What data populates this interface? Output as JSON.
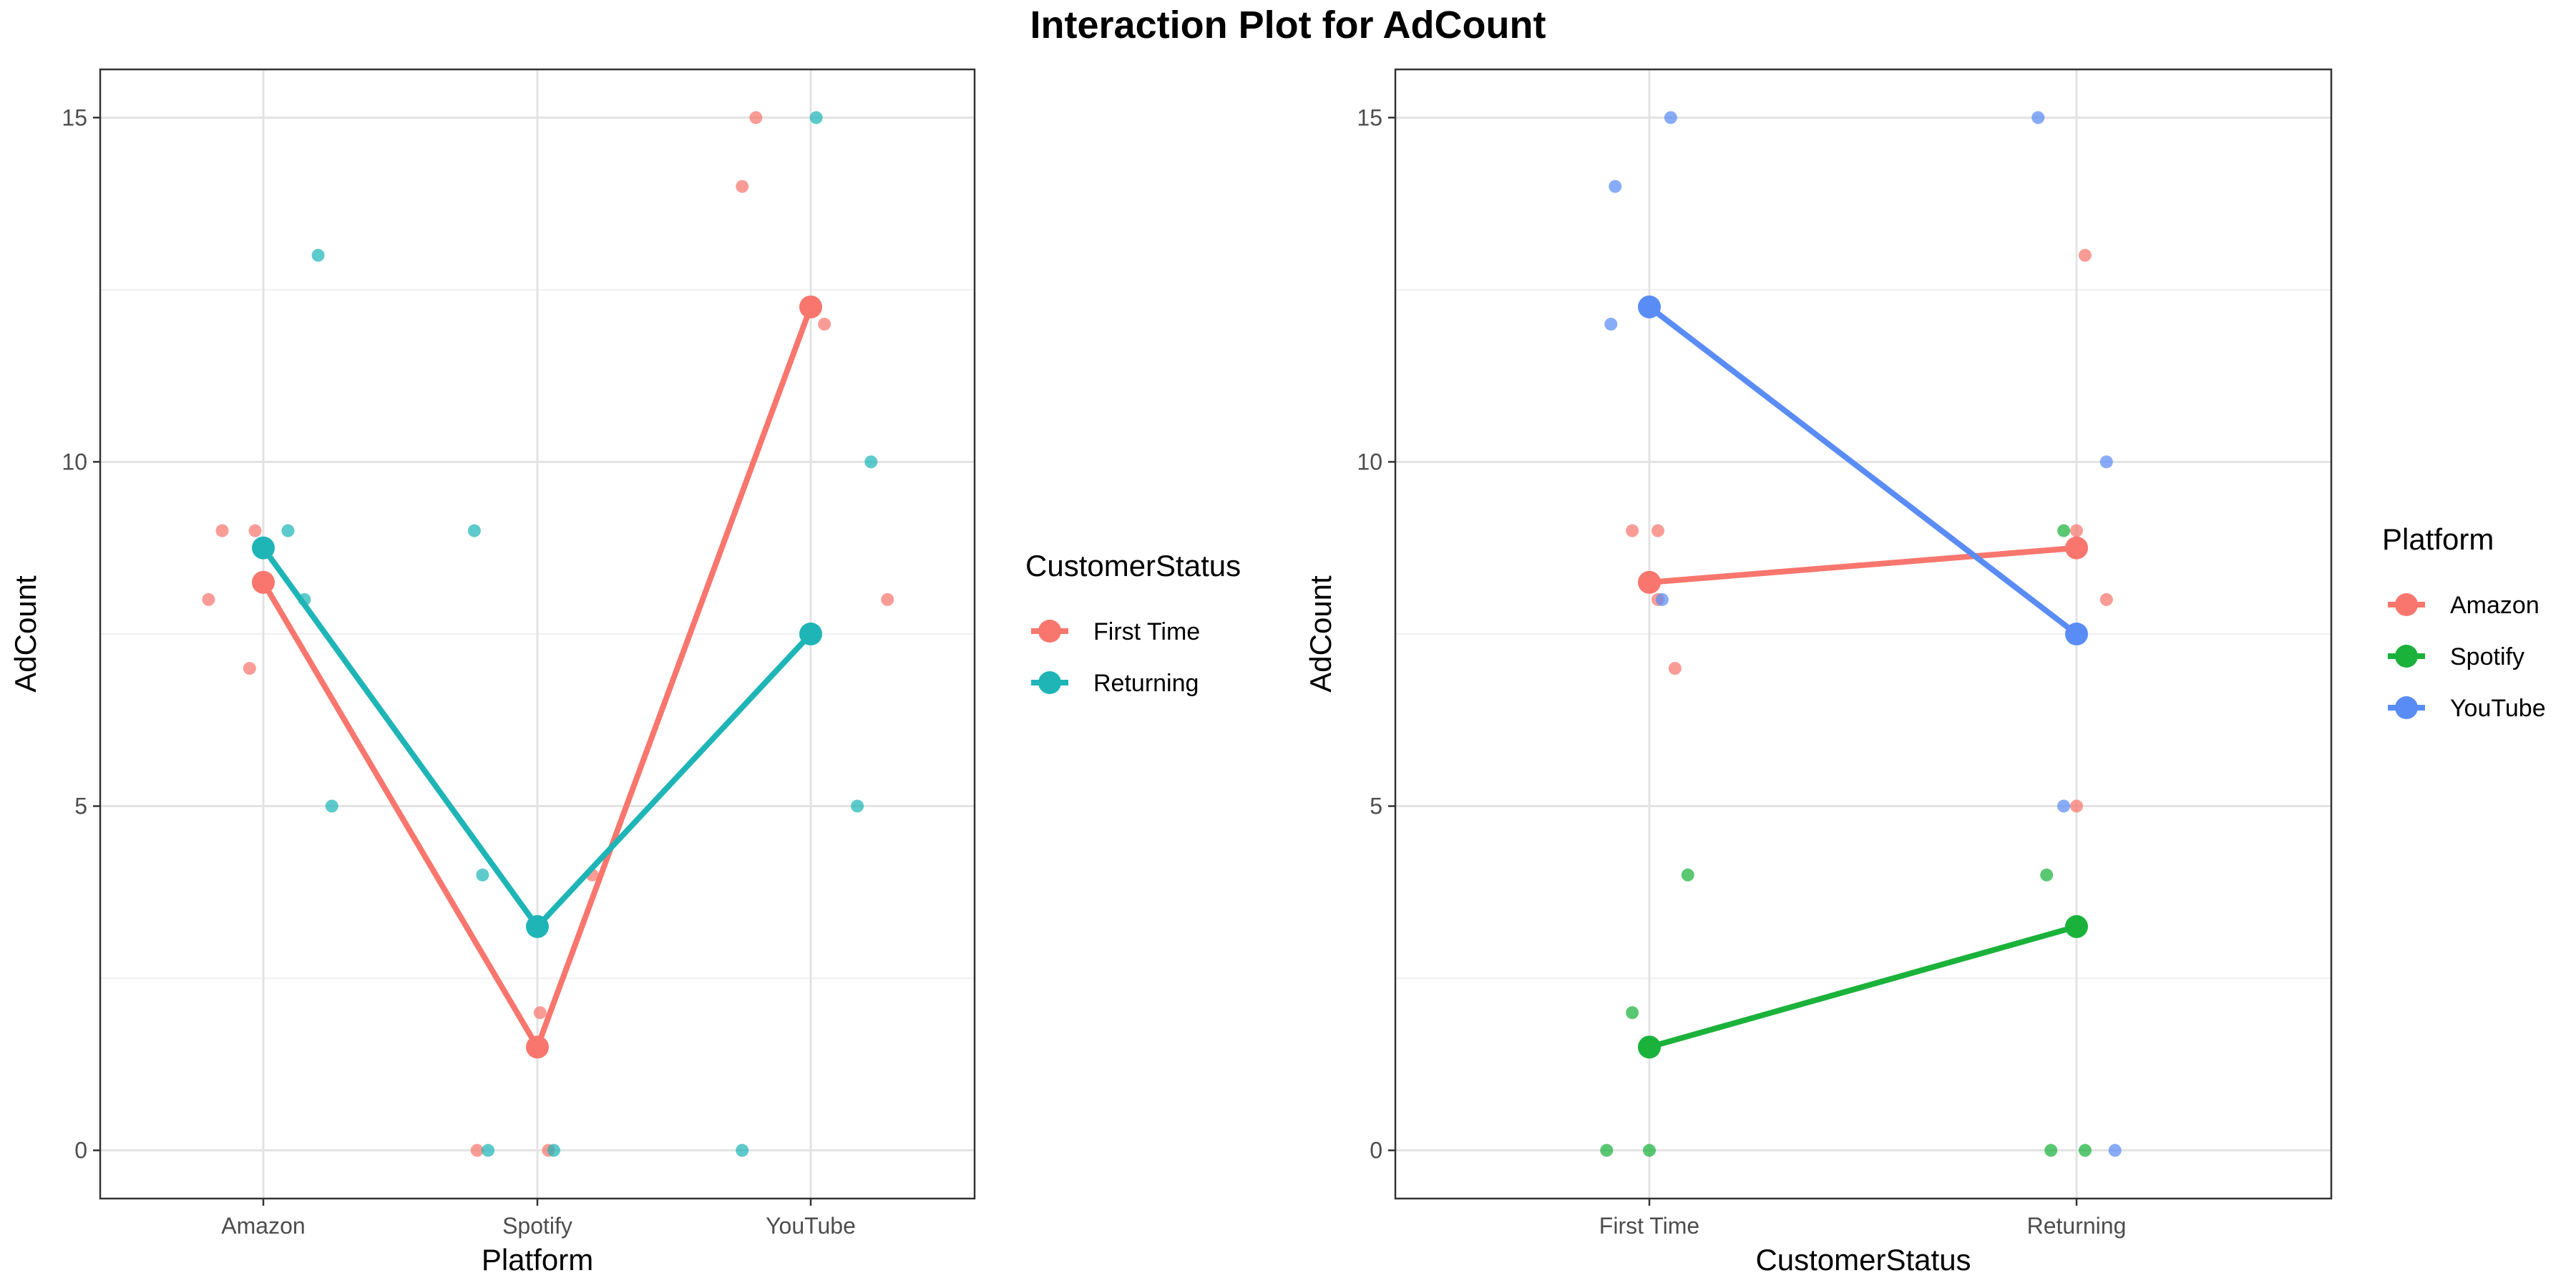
{
  "title": "Interaction Plot for AdCount",
  "colors": {
    "Amazon": "#F8766D",
    "Spotify": "#1AB23B",
    "YouTube": "#5A8CF5",
    "First Time": "#F8766D",
    "Returning": "#1FB5B7"
  },
  "chart_data": [
    {
      "type": "line",
      "xlabel": "Platform",
      "ylabel": "AdCount",
      "categories": [
        "Amazon",
        "Spotify",
        "YouTube"
      ],
      "ylim": [
        -0.7,
        15.7
      ],
      "yticks": [
        0,
        5,
        10,
        15
      ],
      "grid": true,
      "legend_title": "CustomerStatus",
      "legend_position": "right",
      "series": [
        {
          "name": "First Time",
          "values": [
            8.25,
            1.5,
            12.25
          ]
        },
        {
          "name": "Returning",
          "values": [
            8.75,
            3.25,
            7.5
          ]
        }
      ],
      "points": [
        {
          "x": "Amazon",
          "y": 9,
          "group": "First Time"
        },
        {
          "x": "Amazon",
          "y": 9,
          "group": "First Time"
        },
        {
          "x": "Amazon",
          "y": 8,
          "group": "First Time"
        },
        {
          "x": "Amazon",
          "y": 7,
          "group": "First Time"
        },
        {
          "x": "Amazon",
          "y": 13,
          "group": "Returning"
        },
        {
          "x": "Amazon",
          "y": 9,
          "group": "Returning"
        },
        {
          "x": "Amazon",
          "y": 8,
          "group": "Returning"
        },
        {
          "x": "Amazon",
          "y": 5,
          "group": "Returning"
        },
        {
          "x": "Spotify",
          "y": 4,
          "group": "First Time"
        },
        {
          "x": "Spotify",
          "y": 2,
          "group": "First Time"
        },
        {
          "x": "Spotify",
          "y": 0,
          "group": "First Time"
        },
        {
          "x": "Spotify",
          "y": 0,
          "group": "First Time"
        },
        {
          "x": "Spotify",
          "y": 9,
          "group": "Returning"
        },
        {
          "x": "Spotify",
          "y": 4,
          "group": "Returning"
        },
        {
          "x": "Spotify",
          "y": 0,
          "group": "Returning"
        },
        {
          "x": "Spotify",
          "y": 0,
          "group": "Returning"
        },
        {
          "x": "YouTube",
          "y": 15,
          "group": "First Time"
        },
        {
          "x": "YouTube",
          "y": 14,
          "group": "First Time"
        },
        {
          "x": "YouTube",
          "y": 12,
          "group": "First Time"
        },
        {
          "x": "YouTube",
          "y": 8,
          "group": "First Time"
        },
        {
          "x": "YouTube",
          "y": 15,
          "group": "Returning"
        },
        {
          "x": "YouTube",
          "y": 10,
          "group": "Returning"
        },
        {
          "x": "YouTube",
          "y": 5,
          "group": "Returning"
        },
        {
          "x": "YouTube",
          "y": 0,
          "group": "Returning"
        }
      ]
    },
    {
      "type": "line",
      "xlabel": "CustomerStatus",
      "ylabel": "AdCount",
      "categories": [
        "First Time",
        "Returning"
      ],
      "ylim": [
        -0.7,
        15.7
      ],
      "yticks": [
        0,
        5,
        10,
        15
      ],
      "grid": true,
      "legend_title": "Platform",
      "legend_position": "right",
      "series": [
        {
          "name": "Amazon",
          "values": [
            8.25,
            8.75
          ]
        },
        {
          "name": "Spotify",
          "values": [
            1.5,
            3.25
          ]
        },
        {
          "name": "YouTube",
          "values": [
            12.25,
            7.5
          ]
        }
      ],
      "points": [
        {
          "x": "First Time",
          "y": 9,
          "group": "Amazon"
        },
        {
          "x": "First Time",
          "y": 9,
          "group": "Amazon"
        },
        {
          "x": "First Time",
          "y": 8,
          "group": "Amazon"
        },
        {
          "x": "First Time",
          "y": 7,
          "group": "Amazon"
        },
        {
          "x": "First Time",
          "y": 4,
          "group": "Spotify"
        },
        {
          "x": "First Time",
          "y": 2,
          "group": "Spotify"
        },
        {
          "x": "First Time",
          "y": 0,
          "group": "Spotify"
        },
        {
          "x": "First Time",
          "y": 0,
          "group": "Spotify"
        },
        {
          "x": "First Time",
          "y": 15,
          "group": "YouTube"
        },
        {
          "x": "First Time",
          "y": 14,
          "group": "YouTube"
        },
        {
          "x": "First Time",
          "y": 12,
          "group": "YouTube"
        },
        {
          "x": "First Time",
          "y": 8,
          "group": "YouTube"
        },
        {
          "x": "Returning",
          "y": 13,
          "group": "Amazon"
        },
        {
          "x": "Returning",
          "y": 9,
          "group": "Amazon"
        },
        {
          "x": "Returning",
          "y": 8,
          "group": "Amazon"
        },
        {
          "x": "Returning",
          "y": 5,
          "group": "Amazon"
        },
        {
          "x": "Returning",
          "y": 9,
          "group": "Spotify"
        },
        {
          "x": "Returning",
          "y": 4,
          "group": "Spotify"
        },
        {
          "x": "Returning",
          "y": 0,
          "group": "Spotify"
        },
        {
          "x": "Returning",
          "y": 0,
          "group": "Spotify"
        },
        {
          "x": "Returning",
          "y": 15,
          "group": "YouTube"
        },
        {
          "x": "Returning",
          "y": 10,
          "group": "YouTube"
        },
        {
          "x": "Returning",
          "y": 5,
          "group": "YouTube"
        },
        {
          "x": "Returning",
          "y": 0,
          "group": "YouTube"
        }
      ]
    }
  ]
}
